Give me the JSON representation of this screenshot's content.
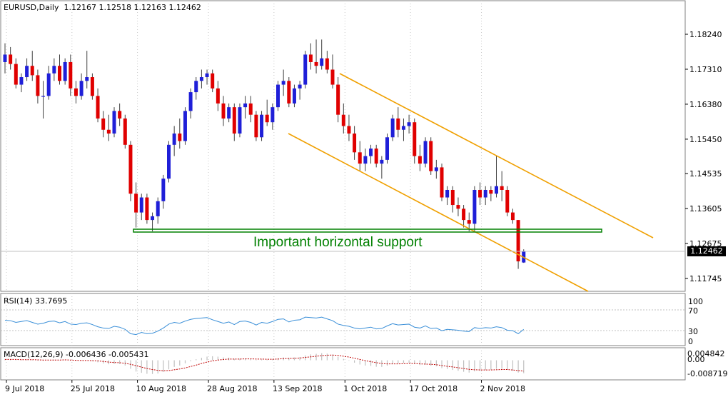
{
  "header": {
    "symbol": "EURUSD,Daily",
    "ohlc": "1.12167 1.12518 1.12163 1.12462"
  },
  "indicators": {
    "rsi_label": "RSI(14) 33.7695",
    "macd_label": "MACD(12,26,9) -0.006436 -0.005431"
  },
  "current_price": "1.12462",
  "annotation": "Important horizontal support",
  "colors": {
    "bull": "#1f1fd8",
    "bear": "#e00000",
    "channel": "#f0a000",
    "support": "#008000",
    "rsi_line": "#3a8fd8",
    "macd_signal": "#c00000",
    "macd_hist": "#c0c0c0"
  },
  "chart_data": [
    {
      "type": "candlestick",
      "title": "EURUSD,Daily",
      "price_ticks": [
        "1.18240",
        "1.17310",
        "1.16380",
        "1.15450",
        "1.14535",
        "1.13605",
        "1.12675",
        "1.11745"
      ],
      "date_ticks": [
        "9 Jul 2018",
        "25 Jul 2018",
        "10 Aug 2018",
        "28 Aug 2018",
        "13 Sep 2018",
        "1 Oct 2018",
        "17 Oct 2018",
        "2 Nov 2018"
      ],
      "ylim": [
        1.1125,
        1.1875
      ],
      "ohlc": [
        [
          1.175,
          1.18,
          1.172,
          1.177
        ],
        [
          1.177,
          1.179,
          1.173,
          1.1745
        ],
        [
          1.1745,
          1.176,
          1.168,
          1.169
        ],
        [
          1.169,
          1.172,
          1.167,
          1.171
        ],
        [
          1.171,
          1.176,
          1.17,
          1.174
        ],
        [
          1.174,
          1.178,
          1.17,
          1.1715
        ],
        [
          1.1715,
          1.173,
          1.164,
          1.166
        ],
        [
          1.166,
          1.17,
          1.16,
          1.166
        ],
        [
          1.166,
          1.174,
          1.165,
          1.172
        ],
        [
          1.172,
          1.176,
          1.17,
          1.174
        ],
        [
          1.174,
          1.177,
          1.169,
          1.17
        ],
        [
          1.17,
          1.176,
          1.169,
          1.175
        ],
        [
          1.175,
          1.177,
          1.166,
          1.168
        ],
        [
          1.168,
          1.17,
          1.164,
          1.166
        ],
        [
          1.166,
          1.172,
          1.165,
          1.17
        ],
        [
          1.17,
          1.178,
          1.168,
          1.171
        ],
        [
          1.171,
          1.172,
          1.165,
          1.166
        ],
        [
          1.166,
          1.168,
          1.159,
          1.16
        ],
        [
          1.16,
          1.162,
          1.155,
          1.157
        ],
        [
          1.157,
          1.161,
          1.154,
          1.156
        ],
        [
          1.156,
          1.163,
          1.155,
          1.162
        ],
        [
          1.162,
          1.164,
          1.158,
          1.16
        ],
        [
          1.16,
          1.161,
          1.152,
          1.153
        ],
        [
          1.153,
          1.154,
          1.138,
          1.14
        ],
        [
          1.14,
          1.143,
          1.131,
          1.135
        ],
        [
          1.135,
          1.14,
          1.133,
          1.139
        ],
        [
          1.139,
          1.14,
          1.132,
          1.133
        ],
        [
          1.133,
          1.135,
          1.13,
          1.134
        ],
        [
          1.134,
          1.139,
          1.132,
          1.138
        ],
        [
          1.138,
          1.145,
          1.136,
          1.144
        ],
        [
          1.144,
          1.154,
          1.143,
          1.153
        ],
        [
          1.153,
          1.158,
          1.15,
          1.156
        ],
        [
          1.156,
          1.16,
          1.152,
          1.154
        ],
        [
          1.154,
          1.163,
          1.153,
          1.162
        ],
        [
          1.162,
          1.168,
          1.16,
          1.167
        ],
        [
          1.167,
          1.171,
          1.165,
          1.17
        ],
        [
          1.17,
          1.173,
          1.168,
          1.171
        ],
        [
          1.171,
          1.173,
          1.169,
          1.172
        ],
        [
          1.172,
          1.173,
          1.167,
          1.168
        ],
        [
          1.168,
          1.17,
          1.162,
          1.164
        ],
        [
          1.164,
          1.166,
          1.158,
          1.16
        ],
        [
          1.16,
          1.164,
          1.159,
          1.163
        ],
        [
          1.163,
          1.164,
          1.154,
          1.156
        ],
        [
          1.156,
          1.164,
          1.155,
          1.163
        ],
        [
          1.163,
          1.166,
          1.16,
          1.164
        ],
        [
          1.164,
          1.166,
          1.159,
          1.161
        ],
        [
          1.161,
          1.162,
          1.154,
          1.155
        ],
        [
          1.155,
          1.162,
          1.154,
          1.161
        ],
        [
          1.161,
          1.165,
          1.158,
          1.159
        ],
        [
          1.159,
          1.164,
          1.157,
          1.163
        ],
        [
          1.163,
          1.17,
          1.162,
          1.169
        ],
        [
          1.169,
          1.173,
          1.166,
          1.17
        ],
        [
          1.17,
          1.171,
          1.163,
          1.164
        ],
        [
          1.164,
          1.169,
          1.163,
          1.168
        ],
        [
          1.168,
          1.17,
          1.165,
          1.169
        ],
        [
          1.169,
          1.178,
          1.168,
          1.177
        ],
        [
          1.177,
          1.18,
          1.173,
          1.175
        ],
        [
          1.175,
          1.181,
          1.172,
          1.174
        ],
        [
          1.174,
          1.181,
          1.173,
          1.176
        ],
        [
          1.176,
          1.178,
          1.172,
          1.173
        ],
        [
          1.173,
          1.177,
          1.168,
          1.169
        ],
        [
          1.169,
          1.171,
          1.159,
          1.161
        ],
        [
          1.161,
          1.164,
          1.156,
          1.158
        ],
        [
          1.158,
          1.161,
          1.154,
          1.156
        ],
        [
          1.156,
          1.158,
          1.149,
          1.151
        ],
        [
          1.151,
          1.154,
          1.146,
          1.148
        ],
        [
          1.148,
          1.152,
          1.146,
          1.15
        ],
        [
          1.15,
          1.153,
          1.148,
          1.152
        ],
        [
          1.152,
          1.153,
          1.147,
          1.148
        ],
        [
          1.148,
          1.15,
          1.144,
          1.149
        ],
        [
          1.149,
          1.156,
          1.148,
          1.155
        ],
        [
          1.155,
          1.161,
          1.154,
          1.16
        ],
        [
          1.16,
          1.163,
          1.155,
          1.157
        ],
        [
          1.157,
          1.16,
          1.154,
          1.158
        ],
        [
          1.158,
          1.161,
          1.156,
          1.159
        ],
        [
          1.159,
          1.16,
          1.148,
          1.15
        ],
        [
          1.15,
          1.153,
          1.146,
          1.148
        ],
        [
          1.148,
          1.155,
          1.147,
          1.154
        ],
        [
          1.154,
          1.155,
          1.145,
          1.146
        ],
        [
          1.146,
          1.149,
          1.144,
          1.147
        ],
        [
          1.147,
          1.148,
          1.138,
          1.139
        ],
        [
          1.139,
          1.142,
          1.137,
          1.141
        ],
        [
          1.141,
          1.142,
          1.135,
          1.137
        ],
        [
          1.137,
          1.139,
          1.134,
          1.136
        ],
        [
          1.136,
          1.137,
          1.131,
          1.133
        ],
        [
          1.133,
          1.135,
          1.13,
          1.132
        ],
        [
          1.132,
          1.142,
          1.13,
          1.141
        ],
        [
          1.141,
          1.143,
          1.137,
          1.139
        ],
        [
          1.139,
          1.142,
          1.137,
          1.141
        ],
        [
          1.141,
          1.142,
          1.138,
          1.14
        ],
        [
          1.14,
          1.15,
          1.139,
          1.142
        ],
        [
          1.142,
          1.146,
          1.138,
          1.141
        ],
        [
          1.141,
          1.142,
          1.134,
          1.135
        ],
        [
          1.135,
          1.136,
          1.132,
          1.133
        ],
        [
          1.133,
          1.133,
          1.12,
          1.122
        ],
        [
          1.1217,
          1.1252,
          1.1216,
          1.1246
        ]
      ],
      "annotations": [
        "Important horizontal support"
      ]
    },
    {
      "type": "line",
      "title": "RSI(14) 33.7695",
      "y_ticks": [
        "100",
        "70",
        "30",
        "0"
      ],
      "ylim": [
        0,
        100
      ],
      "series": [
        {
          "name": "RSI(14)",
          "values": [
            55,
            54,
            50,
            52,
            54,
            50,
            46,
            48,
            52,
            53,
            49,
            52,
            46,
            45,
            48,
            49,
            45,
            40,
            37,
            36,
            41,
            39,
            34,
            24,
            22,
            27,
            24,
            25,
            30,
            37,
            46,
            50,
            48,
            53,
            57,
            59,
            60,
            61,
            56,
            52,
            48,
            51,
            45,
            52,
            53,
            50,
            44,
            50,
            48,
            52,
            57,
            58,
            51,
            55,
            56,
            62,
            61,
            60,
            62,
            58,
            54,
            46,
            43,
            41,
            37,
            35,
            37,
            39,
            35,
            36,
            42,
            47,
            44,
            45,
            46,
            39,
            37,
            42,
            36,
            37,
            31,
            34,
            33,
            32,
            30,
            29,
            38,
            36,
            38,
            37,
            40,
            38,
            32,
            31,
            24,
            34
          ]
        }
      ]
    },
    {
      "type": "bar",
      "title": "MACD(12,26,9) -0.006436 -0.005431",
      "y_ticks": [
        "0.004842",
        "0.00",
        "-0.008719"
      ],
      "ylim": [
        -0.009,
        0.0055
      ],
      "series": [
        {
          "name": "MACD",
          "values": [
            0.0005,
            0.0004,
            0.0002,
            0.0002,
            0.0003,
            0.0002,
            -0.0002,
            -0.0003,
            0.0001,
            0.0003,
            0.0001,
            0.0003,
            -0.0002,
            -0.0004,
            -0.0002,
            0.0,
            -0.0004,
            -0.001,
            -0.0016,
            -0.002,
            -0.0018,
            -0.0019,
            -0.0026,
            -0.0042,
            -0.0056,
            -0.0062,
            -0.0067,
            -0.0068,
            -0.0066,
            -0.0058,
            -0.0045,
            -0.0033,
            -0.0026,
            -0.0015,
            -0.0005,
            0.0005,
            0.0012,
            0.0018,
            0.002,
            0.0018,
            0.0014,
            0.0013,
            0.0007,
            0.0008,
            0.0009,
            0.0007,
            0.0002,
            0.0004,
            0.0003,
            0.0005,
            0.001,
            0.0014,
            0.0012,
            0.0014,
            0.0016,
            0.0024,
            0.0029,
            0.0032,
            0.0035,
            0.0033,
            0.0028,
            0.0017,
            0.0007,
            -0.0002,
            -0.0012,
            -0.0021,
            -0.0026,
            -0.0028,
            -0.0032,
            -0.0033,
            -0.0027,
            -0.0019,
            -0.0016,
            -0.0014,
            -0.0012,
            -0.0018,
            -0.0024,
            -0.0022,
            -0.0027,
            -0.003,
            -0.0039,
            -0.0043,
            -0.0048,
            -0.0052,
            -0.0057,
            -0.0061,
            -0.0055,
            -0.0053,
            -0.0049,
            -0.0047,
            -0.0042,
            -0.0042,
            -0.0047,
            -0.0052,
            -0.0061,
            -0.0064
          ]
        },
        {
          "name": "Signal",
          "values": [
            0.0004,
            0.0004,
            0.0004,
            0.0003,
            0.0003,
            0.0003,
            0.0002,
            0.0001,
            0.0001,
            0.0001,
            0.0001,
            0.0002,
            0.0001,
            0.0,
            -0.0001,
            -0.0001,
            -0.0002,
            -0.0003,
            -0.0006,
            -0.0009,
            -0.0011,
            -0.0012,
            -0.0015,
            -0.002,
            -0.0027,
            -0.0034,
            -0.0041,
            -0.0046,
            -0.005,
            -0.0052,
            -0.0051,
            -0.0047,
            -0.0043,
            -0.0038,
            -0.0031,
            -0.0024,
            -0.0016,
            -0.0009,
            -0.0003,
            0.0001,
            0.0004,
            0.0006,
            0.0006,
            0.0006,
            0.0007,
            0.0007,
            0.0006,
            0.0006,
            0.0005,
            0.0005,
            0.0006,
            0.0008,
            0.0009,
            0.001,
            0.0011,
            0.0014,
            0.0017,
            0.002,
            0.0023,
            0.0025,
            0.0026,
            0.0024,
            0.002,
            0.0016,
            0.001,
            0.0004,
            -0.0002,
            -0.0007,
            -0.0012,
            -0.0016,
            -0.0018,
            -0.0018,
            -0.0018,
            -0.0017,
            -0.0016,
            -0.0016,
            -0.0018,
            -0.0019,
            -0.002,
            -0.0022,
            -0.0026,
            -0.003,
            -0.0033,
            -0.0037,
            -0.0041,
            -0.0045,
            -0.0047,
            -0.0048,
            -0.0048,
            -0.0048,
            -0.0047,
            -0.0046,
            -0.0046,
            -0.0048,
            -0.0051,
            -0.0054
          ]
        }
      ]
    }
  ]
}
